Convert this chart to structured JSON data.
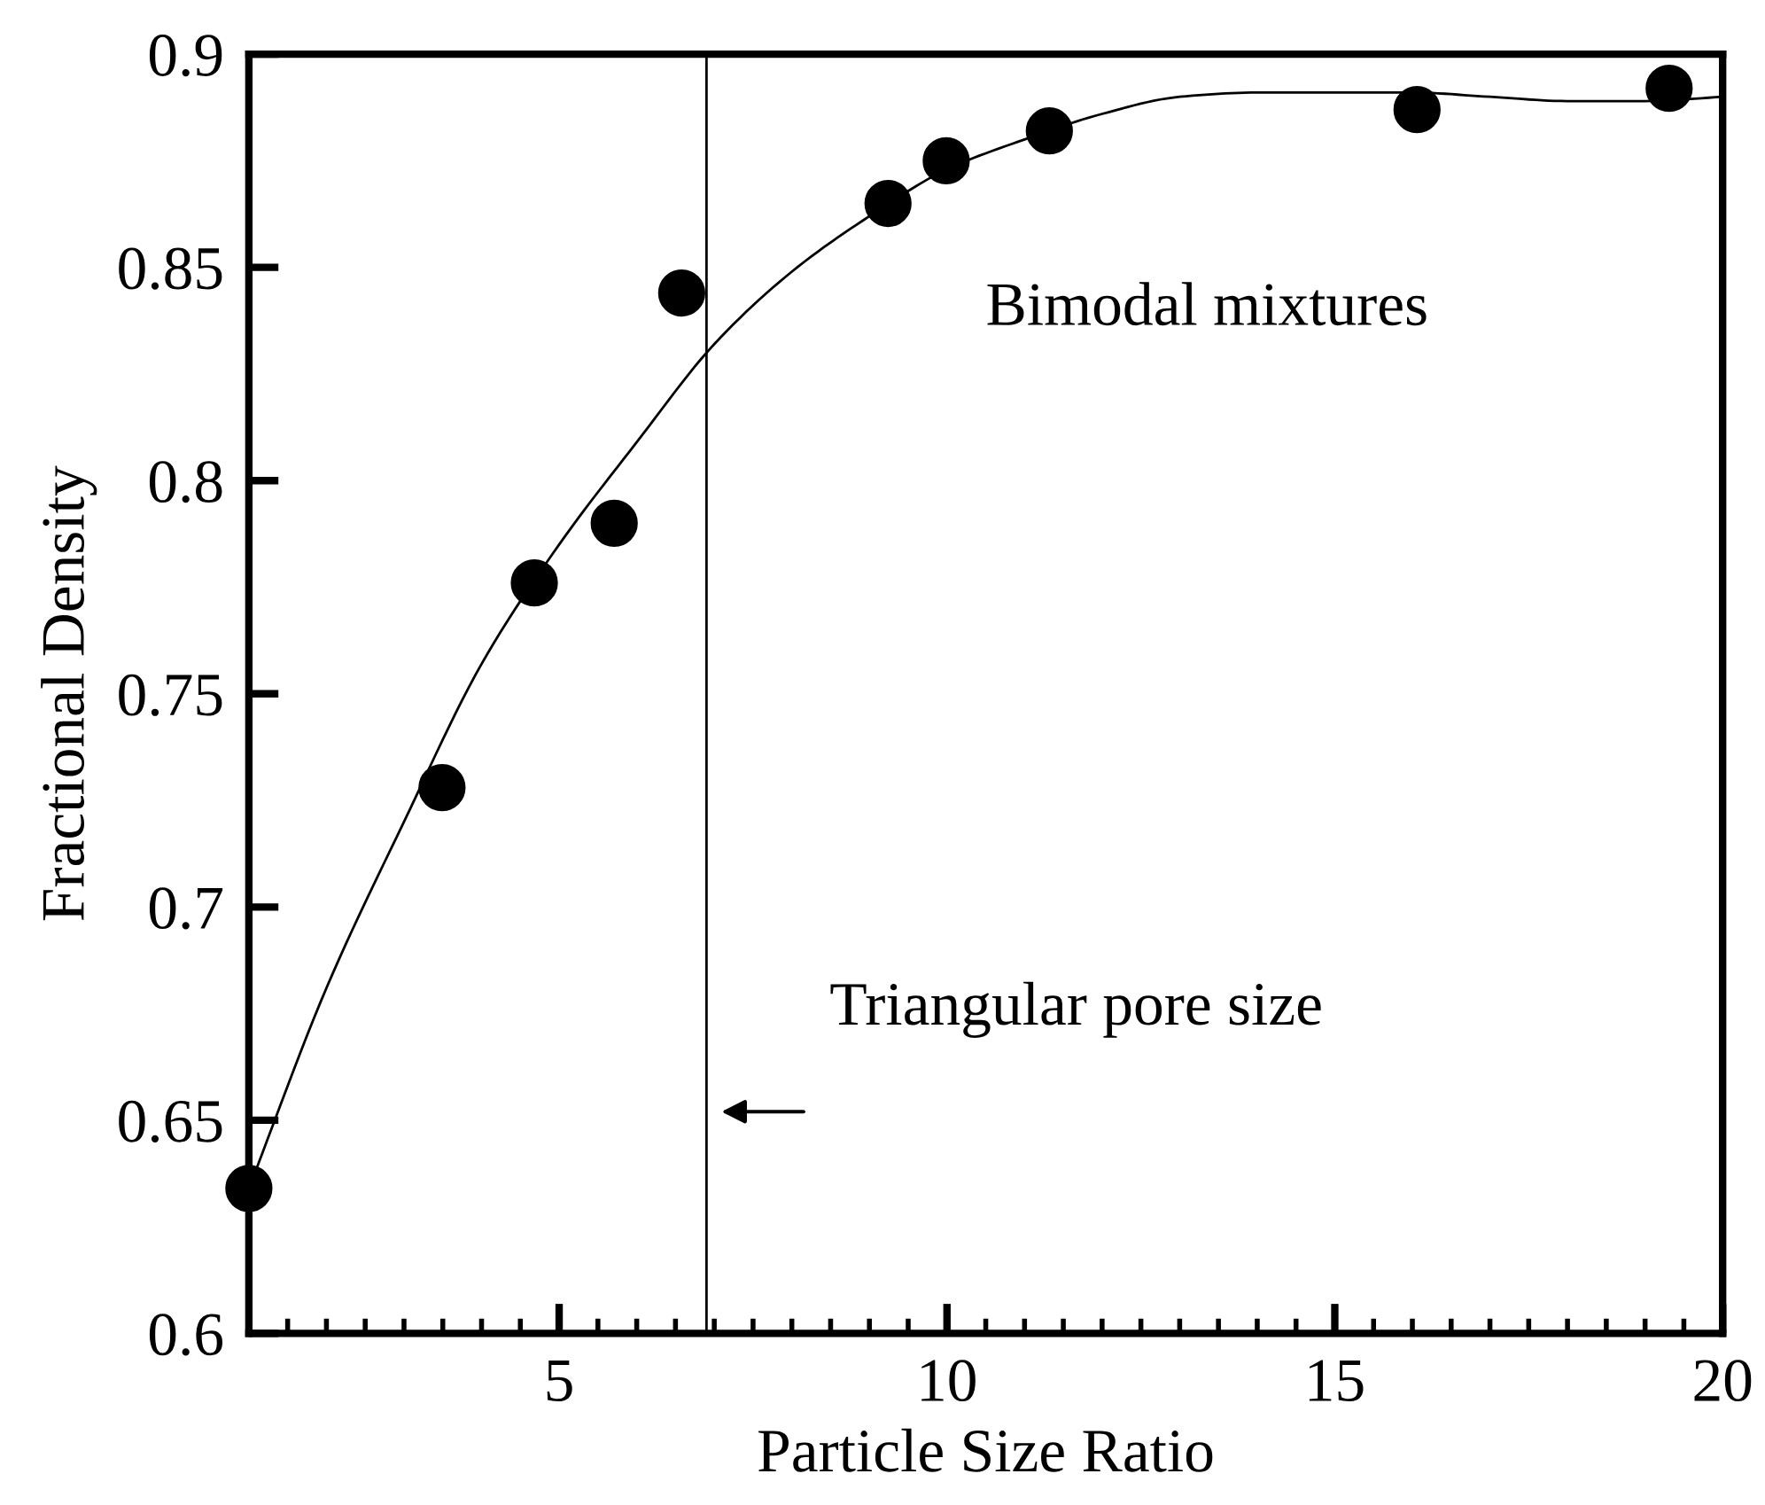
{
  "chart_data": {
    "type": "scatter",
    "xlabel": "Particle Size Ratio",
    "ylabel": "Fractional Density",
    "series": [
      {
        "color": "#000000",
        "marker": "circle",
        "x": [
          1.0,
          3.49,
          4.68,
          5.71,
          6.58,
          9.24,
          9.99,
          11.32,
          16.06,
          19.31
        ],
        "values": [
          0.634,
          0.728,
          0.776,
          0.79,
          0.844,
          0.865,
          0.875,
          0.882,
          0.887,
          0.892
        ]
      },
      {
        "type": "line",
        "color": "#000000",
        "marker": "none",
        "line_style": "solid",
        "x": [
          1,
          2,
          3,
          4,
          5,
          6,
          7,
          8,
          9,
          10,
          11,
          12,
          13,
          14,
          15,
          16,
          17,
          18,
          19,
          20
        ],
        "values": [
          0.634,
          0.681,
          0.72,
          0.757,
          0.785,
          0.809,
          0.832,
          0.849,
          0.862,
          0.873,
          0.88,
          0.886,
          0.89,
          0.891,
          0.891,
          0.891,
          0.89,
          0.889,
          0.889,
          0.89
        ]
      }
    ],
    "ref_lines": [
      {
        "axis": "x",
        "value": 6.9,
        "label": "Triangular pore size",
        "color": "#000000"
      }
    ],
    "annotations": [
      "Bimodal mixtures"
    ],
    "xlim": [
      1,
      20
    ],
    "xticks": [
      5,
      10,
      15,
      20
    ],
    "ylim": [
      0.6,
      0.9
    ],
    "yticks": [
      0.6,
      0.65,
      0.7,
      0.75,
      0.8,
      0.85,
      0.9
    ],
    "grid": false,
    "legend": false
  }
}
